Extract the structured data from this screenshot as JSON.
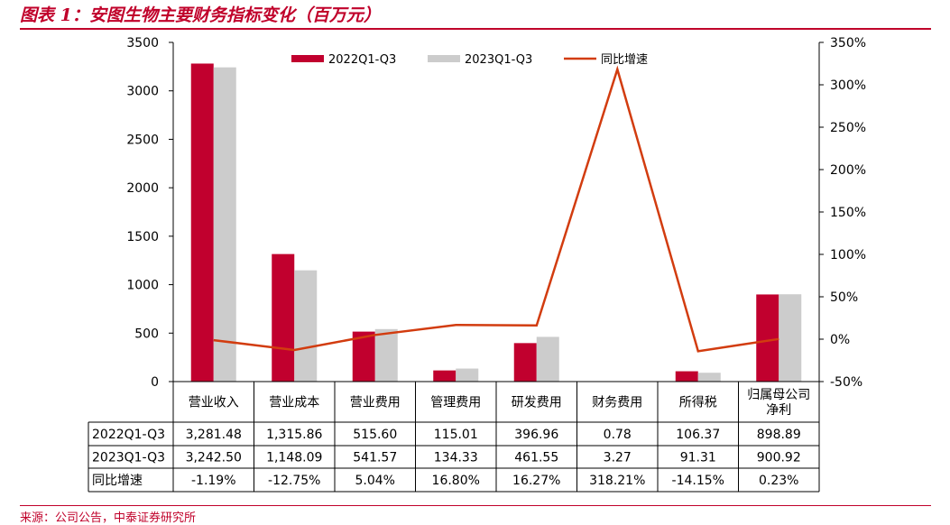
{
  "figure_title": "图表 1：安图生物主要财务指标变化（百万元）",
  "source_note": "来源：公司公告，中泰证券研究所",
  "colors": {
    "s2022": "#c1002e",
    "s2023": "#cccccc",
    "growth": "#d23c0f",
    "accent": "#c0002a"
  },
  "chart_data": {
    "type": "bar+line",
    "title": "图表 1：安图生物主要财务指标变化（百万元）",
    "categories": [
      "营业收入",
      "营业成本",
      "营业费用",
      "管理费用",
      "研发费用",
      "财务费用",
      "所得税",
      "归属母公司净利"
    ],
    "category_lines": [
      [
        "营业收入"
      ],
      [
        "营业成本"
      ],
      [
        "营业费用"
      ],
      [
        "管理费用"
      ],
      [
        "研发费用"
      ],
      [
        "财务费用"
      ],
      [
        "所得税"
      ],
      [
        "归属母公司",
        "净利"
      ]
    ],
    "series": [
      {
        "name": "2022Q1-Q3",
        "type": "bar",
        "axis": "left",
        "values": [
          3281.48,
          1315.86,
          515.6,
          115.01,
          396.96,
          0.78,
          106.37,
          898.89
        ]
      },
      {
        "name": "2023Q1-Q3",
        "type": "bar",
        "axis": "left",
        "values": [
          3242.5,
          1148.09,
          541.57,
          134.33,
          461.55,
          3.27,
          91.31,
          900.92
        ]
      },
      {
        "name": "同比增速",
        "type": "line",
        "axis": "right",
        "values": [
          -1.19,
          -12.75,
          5.04,
          16.8,
          16.27,
          318.21,
          -14.15,
          0.23
        ]
      }
    ],
    "y_left": {
      "ylim": [
        0,
        3500
      ],
      "ticks": [
        "0",
        "500",
        "1000",
        "1500",
        "2000",
        "2500",
        "3000",
        "3500"
      ]
    },
    "y_right": {
      "ylim": [
        -50,
        350
      ],
      "ticks": [
        "-50%",
        "0%",
        "50%",
        "100%",
        "150%",
        "200%",
        "250%",
        "300%",
        "350%"
      ]
    },
    "legend_position": "top-center",
    "table": {
      "rows": [
        {
          "label": "2022Q1-Q3",
          "cells": [
            "3,281.48",
            "1,315.86",
            "515.60",
            "115.01",
            "396.96",
            "0.78",
            "106.37",
            "898.89"
          ]
        },
        {
          "label": "2023Q1-Q3",
          "cells": [
            "3,242.50",
            "1,148.09",
            "541.57",
            "134.33",
            "461.55",
            "3.27",
            "91.31",
            "900.92"
          ]
        },
        {
          "label": "同比增速",
          "cells": [
            "-1.19%",
            "-12.75%",
            "5.04%",
            "16.80%",
            "16.27%",
            "318.21%",
            "-14.15%",
            "0.23%"
          ]
        }
      ]
    }
  }
}
